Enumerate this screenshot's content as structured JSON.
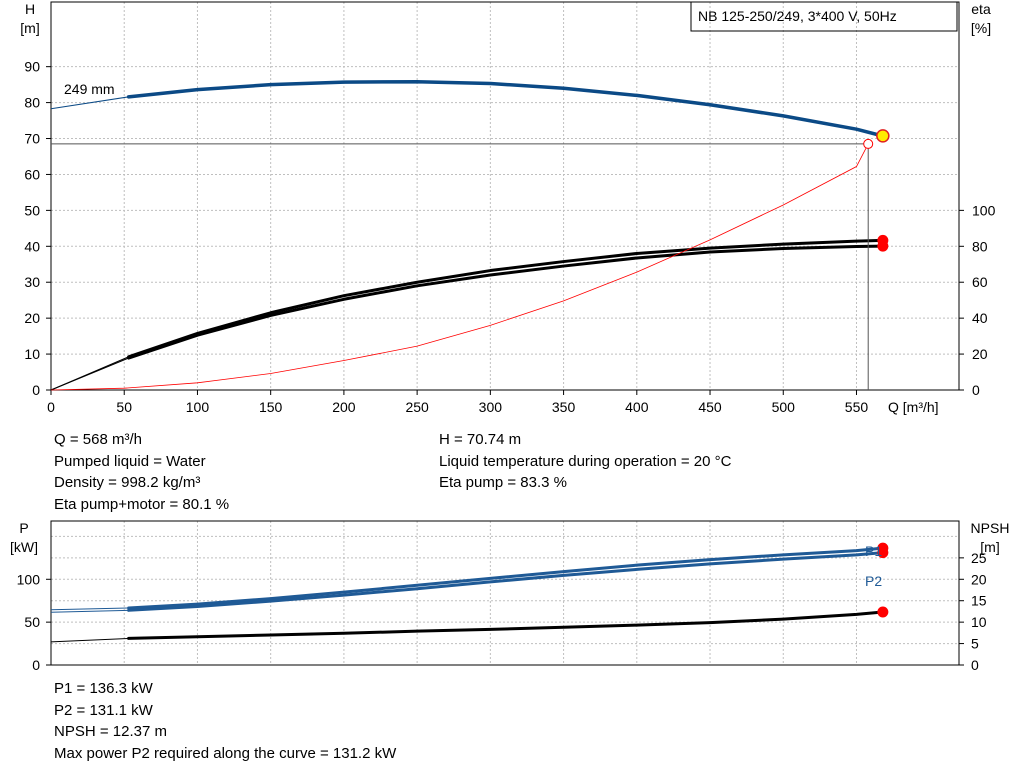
{
  "pump_title": "NB 125-250/249, 3*400 V, 50Hz",
  "colors": {
    "head_curve": "#0b4a86",
    "power_curve": "#1f5a96",
    "eta_curve": "#000000",
    "system_curve": "#ff0000",
    "operating_point_head": "#ffeb00",
    "operating_point_power": "#ff0000",
    "grid": "#bfbfbf"
  },
  "info_main": {
    "q": "Q = 568 m³/h",
    "liquid": "Pumped liquid = Water",
    "density": "Density = 998.2 kg/m³",
    "eta_total": "Eta pump+motor = 80.1 %",
    "h": "H = 70.74 m",
    "temp": "Liquid temperature during operation = 20 °C",
    "eta_pump": "Eta pump = 83.3 %"
  },
  "info_power": {
    "p1": "P1 = 136.3 kW",
    "p2": "P2 = 131.1 kW",
    "npsh": "NPSH = 12.37 m",
    "max_p2": "Max power P2 required along the curve = 131.2 kW"
  },
  "chart_data": [
    {
      "type": "line",
      "title": "NB 125-250/249, 3*400 V, 50Hz",
      "xlabel": "Q [m³/h]",
      "ylabel": "H\n[m]",
      "y2label": "eta\n[%]",
      "xlim": [
        0,
        620
      ],
      "ylim": [
        0,
        108
      ],
      "y2lim": [
        0,
        216
      ],
      "x_ticks": [
        0,
        50,
        100,
        150,
        200,
        250,
        300,
        350,
        400,
        450,
        500,
        550
      ],
      "y_ticks": [
        0,
        10,
        20,
        30,
        40,
        50,
        60,
        70,
        80,
        90
      ],
      "y2_ticks": [
        0,
        20,
        40,
        60,
        80,
        100
      ],
      "grid": true,
      "annotations": [
        {
          "text": "249 mm",
          "x": 10,
          "y": 82
        }
      ],
      "operating_point": {
        "q": 568,
        "h": 70.74
      },
      "duty_point": {
        "q": 558,
        "h": 68.5
      },
      "series": [
        {
          "name": "249 mm",
          "axis": "left",
          "role": "head",
          "x": [
            0,
            53,
            100,
            150,
            200,
            250,
            300,
            350,
            400,
            450,
            500,
            550,
            568
          ],
          "y": [
            78.3,
            81.6,
            83.6,
            85.0,
            85.7,
            85.8,
            85.3,
            84.0,
            82.0,
            79.4,
            76.3,
            72.6,
            70.7
          ]
        },
        {
          "name": "",
          "axis": "right",
          "role": "eta",
          "x": [
            0,
            53,
            100,
            150,
            200,
            250,
            300,
            350,
            400,
            450,
            500,
            550,
            568
          ],
          "y": [
            0,
            18.5,
            31.5,
            43.0,
            52.5,
            60.0,
            66.5,
            71.5,
            76.0,
            79.0,
            81.2,
            82.9,
            83.3
          ]
        },
        {
          "name": "",
          "axis": "right",
          "role": "eta",
          "x": [
            0,
            53,
            100,
            150,
            200,
            250,
            300,
            350,
            400,
            450,
            500,
            550,
            568
          ],
          "y": [
            0,
            17.8,
            30.5,
            41.5,
            50.5,
            58.0,
            64.0,
            69.0,
            73.5,
            76.8,
            78.8,
            79.9,
            80.1
          ]
        },
        {
          "name": "",
          "axis": "left",
          "role": "system",
          "x": [
            0,
            50,
            100,
            150,
            200,
            250,
            300,
            350,
            400,
            450,
            500,
            550,
            558
          ],
          "y": [
            0,
            0.5,
            2.0,
            4.6,
            8.2,
            12.2,
            18.0,
            24.8,
            32.8,
            41.8,
            51.5,
            62.2,
            68.5
          ]
        }
      ]
    },
    {
      "type": "line",
      "ylabel": "P\n[kW]",
      "y2label": "NPSH\n[m]",
      "xlim": [
        0,
        620
      ],
      "ylim": [
        0,
        168
      ],
      "y2lim": [
        0,
        33.6
      ],
      "y_ticks": [
        0,
        50,
        100
      ],
      "y2_ticks": [
        0,
        5,
        10,
        15,
        20,
        25
      ],
      "grid": true,
      "series": [
        {
          "name": "P1",
          "axis": "left",
          "role": "power",
          "x": [
            0,
            53,
            100,
            150,
            200,
            250,
            300,
            350,
            400,
            450,
            500,
            550,
            568
          ],
          "y": [
            64.5,
            66.5,
            71.0,
            77.5,
            85.0,
            93.0,
            101.0,
            109.0,
            116.5,
            123.0,
            128.5,
            133.5,
            136.3
          ]
        },
        {
          "name": "P2",
          "axis": "left",
          "role": "power",
          "x": [
            0,
            53,
            100,
            150,
            200,
            250,
            300,
            350,
            400,
            450,
            500,
            550,
            568
          ],
          "y": [
            61.5,
            63.8,
            68.3,
            74.5,
            81.5,
            89.0,
            97.0,
            104.5,
            111.5,
            118.0,
            123.5,
            128.5,
            131.1
          ]
        },
        {
          "name": "",
          "axis": "right",
          "role": "npsh",
          "x": [
            0,
            53,
            100,
            150,
            200,
            250,
            300,
            350,
            400,
            450,
            500,
            550,
            568
          ],
          "y": [
            5.4,
            6.2,
            6.6,
            7.0,
            7.4,
            7.9,
            8.3,
            8.8,
            9.3,
            9.9,
            10.7,
            11.8,
            12.37
          ]
        }
      ]
    }
  ]
}
